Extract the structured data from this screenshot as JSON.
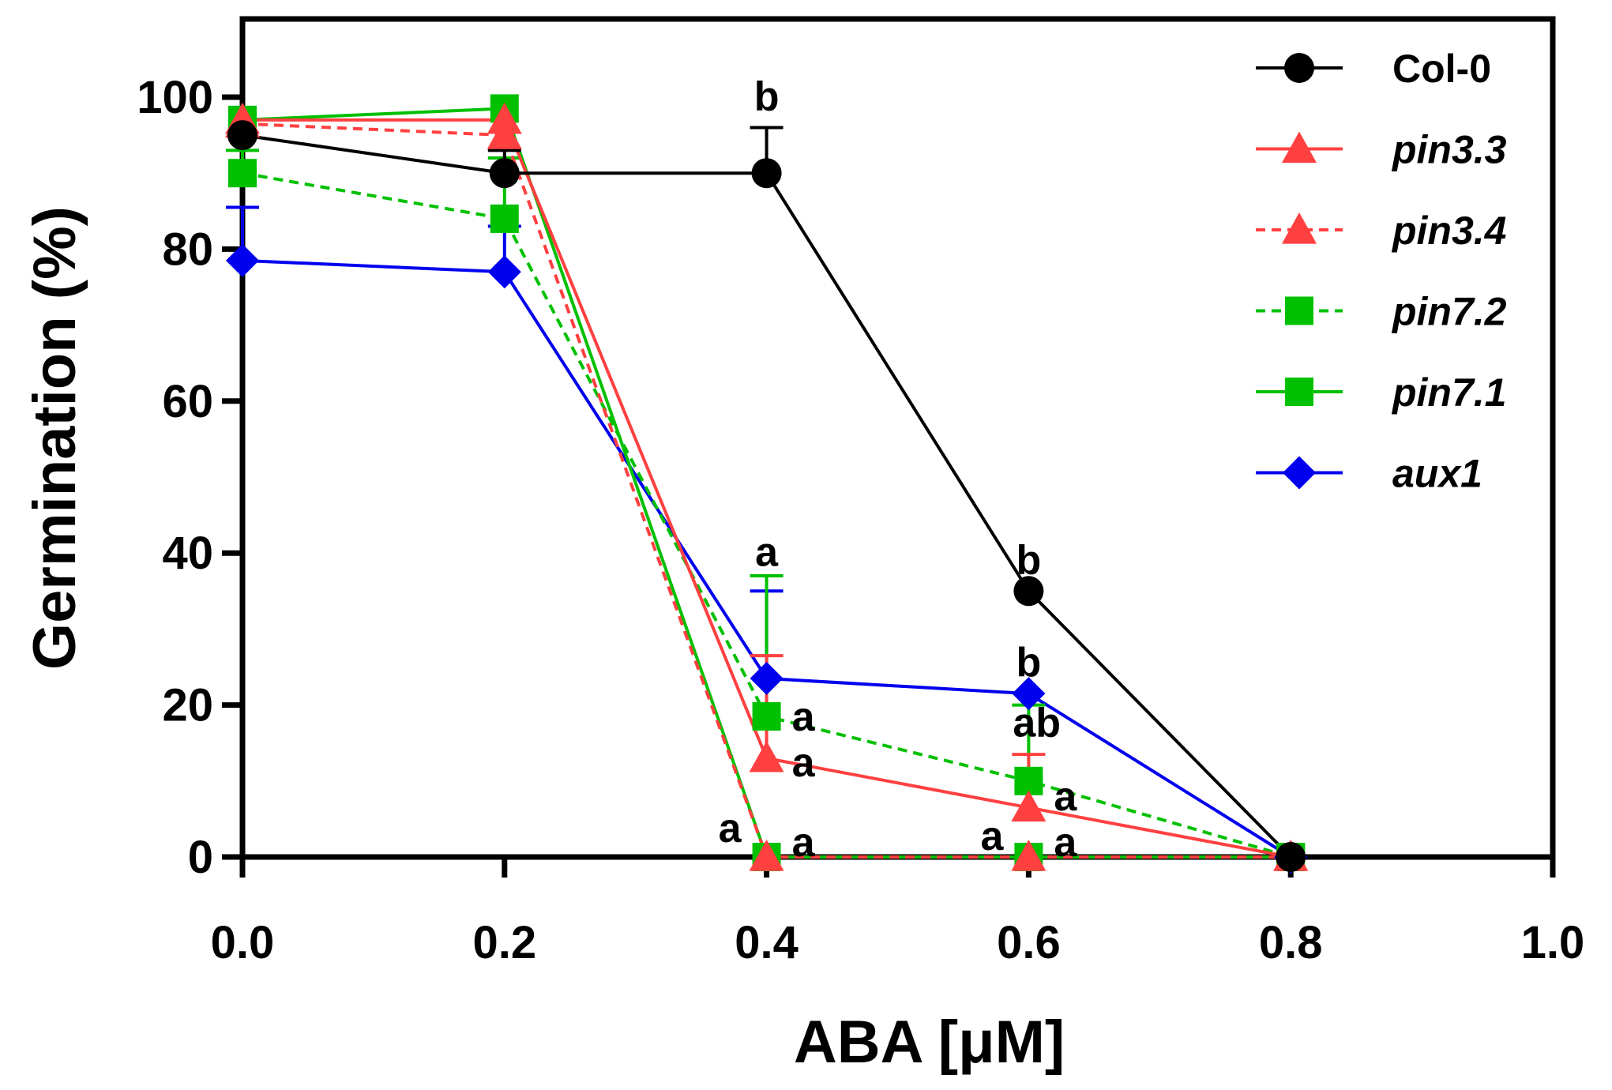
{
  "chart_data": {
    "type": "line",
    "title": "",
    "xlabel": "ABA [μM]",
    "ylabel": "Germination (%)",
    "xlim": [
      0,
      1.0
    ],
    "ylim": [
      0,
      110
    ],
    "x_ticks": [
      "0.0",
      "0.2",
      "0.4",
      "0.6",
      "0.8",
      "1.0"
    ],
    "y_ticks": [
      "0",
      "20",
      "40",
      "60",
      "80",
      "100"
    ],
    "x": [
      0,
      0.2,
      0.4,
      0.6,
      0.8
    ],
    "legend_position": "top-right",
    "series": [
      {
        "name": "Col-0",
        "italic": false,
        "color": "#000000",
        "marker": "circle",
        "dashed": false,
        "values": [
          95,
          90,
          90,
          35,
          0
        ],
        "err": [
          null,
          3,
          6,
          null,
          null
        ]
      },
      {
        "name": "pin3.3",
        "italic": true,
        "color": "#ff4040",
        "marker": "triangle",
        "dashed": false,
        "values": [
          97,
          97,
          13,
          6.5,
          0
        ],
        "err": [
          null,
          null,
          13.5,
          7,
          null
        ]
      },
      {
        "name": "pin3.4",
        "italic": true,
        "color": "#ff4040",
        "marker": "triangle",
        "dashed": true,
        "values": [
          96.5,
          95,
          0,
          0,
          0
        ],
        "err": [
          null,
          null,
          null,
          null,
          null
        ]
      },
      {
        "name": "pin7.2",
        "italic": true,
        "color": "#00c000",
        "marker": "square",
        "dashed": true,
        "values": [
          90,
          84,
          18.5,
          10,
          0
        ],
        "err": [
          3,
          8,
          18.5,
          10,
          null
        ]
      },
      {
        "name": "pin7.1",
        "italic": true,
        "color": "#00c000",
        "marker": "square",
        "dashed": false,
        "values": [
          97,
          98.5,
          0,
          0,
          0
        ],
        "err": [
          null,
          null,
          null,
          null,
          null
        ]
      },
      {
        "name": "aux1",
        "italic": true,
        "color": "#0000ee",
        "marker": "diamond",
        "dashed": false,
        "values": [
          78.5,
          77,
          23.5,
          21.5,
          0
        ],
        "err": [
          7,
          6,
          11.5,
          null,
          null
        ]
      }
    ],
    "annotations": [
      {
        "text": "b",
        "x": 0.4,
        "y": 96,
        "anchor": "above"
      },
      {
        "text": "b",
        "x": 0.6,
        "y": 35,
        "anchor": "above"
      },
      {
        "text": "b",
        "x": 0.6,
        "y": 21.5,
        "anchor": "above"
      },
      {
        "text": "a",
        "x": 0.4,
        "y": 36,
        "anchor": "above"
      },
      {
        "text": "a",
        "x": 0.4,
        "y": 18.5,
        "anchor": "right"
      },
      {
        "text": "a",
        "x": 0.4,
        "y": 12.5,
        "anchor": "right"
      },
      {
        "text": "a",
        "x": 0.4,
        "y": 3,
        "anchor": "left"
      },
      {
        "text": "a",
        "x": 0.4,
        "y": 2,
        "anchor": "right"
      },
      {
        "text": "ab",
        "x": 0.6,
        "y": 15,
        "anchor": "above-right"
      },
      {
        "text": "a",
        "x": 0.6,
        "y": 8,
        "anchor": "right"
      },
      {
        "text": "a",
        "x": 0.6,
        "y": 2,
        "anchor": "left"
      },
      {
        "text": "a",
        "x": 0.6,
        "y": 2,
        "anchor": "right"
      }
    ]
  }
}
